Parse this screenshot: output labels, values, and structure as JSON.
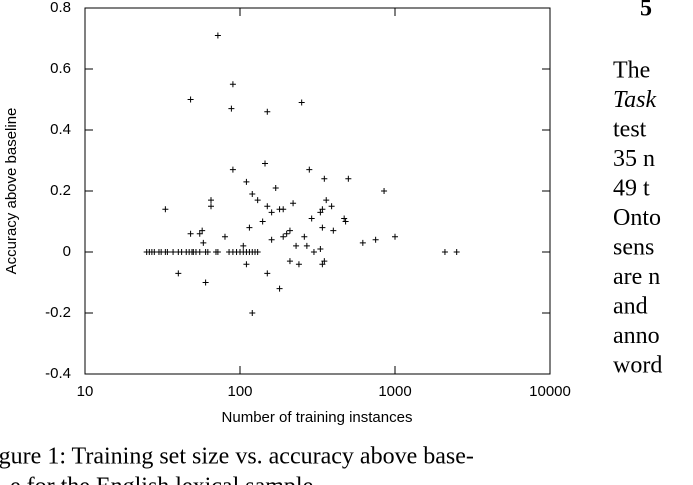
{
  "chart_data": {
    "type": "scatter",
    "xlabel": "Number of training instances",
    "ylabel": "Accuracy above baseline",
    "xscale": "log",
    "xlim": [
      10,
      10000
    ],
    "xticks": [
      10,
      100,
      1000,
      10000
    ],
    "ylim": [
      -0.4,
      0.8
    ],
    "yticks": [
      -0.4,
      -0.2,
      0,
      0.2,
      0.4,
      0.6,
      0.8
    ],
    "color": "#000000",
    "x": [
      25,
      26,
      27,
      28,
      30,
      31,
      33,
      34,
      37,
      40,
      42,
      45,
      47,
      49,
      50,
      52,
      55,
      60,
      62,
      70,
      72,
      85,
      90,
      95,
      100,
      105,
      110,
      115,
      120,
      125,
      130,
      2100,
      2500,
      72,
      48,
      90,
      88,
      150,
      250,
      145,
      90,
      280,
      170,
      65,
      65,
      33,
      110,
      120,
      130,
      190,
      180,
      150,
      160,
      220,
      330,
      340,
      360,
      390,
      470,
      480,
      500,
      350,
      850,
      1000,
      750,
      620,
      400,
      340,
      260,
      290,
      210,
      200,
      190,
      160,
      140,
      48,
      55,
      57,
      80,
      105,
      115,
      58,
      40,
      60,
      110,
      120,
      150,
      180,
      210,
      240,
      340,
      350,
      300,
      330,
      270,
      230
    ],
    "y": [
      0,
      0,
      0,
      0,
      0,
      0,
      0,
      0,
      0,
      0,
      0,
      0,
      0,
      0,
      0,
      0,
      0,
      0,
      0,
      0,
      0,
      0,
      0,
      0,
      0,
      0,
      0,
      0,
      0,
      0,
      0,
      0,
      0,
      0.71,
      0.5,
      0.55,
      0.47,
      0.46,
      0.49,
      0.29,
      0.27,
      0.27,
      0.21,
      0.17,
      0.15,
      0.14,
      0.23,
      0.19,
      0.17,
      0.14,
      0.14,
      0.15,
      0.13,
      0.16,
      0.13,
      0.14,
      0.17,
      0.15,
      0.11,
      0.1,
      0.24,
      0.24,
      0.2,
      0.05,
      0.04,
      0.03,
      0.07,
      0.08,
      0.05,
      0.11,
      0.07,
      0.06,
      0.05,
      0.04,
      0.1,
      0.06,
      0.06,
      0.07,
      0.05,
      0.02,
      0.08,
      0.03,
      -0.07,
      -0.1,
      -0.04,
      -0.2,
      -0.07,
      -0.12,
      -0.03,
      -0.04,
      -0.04,
      -0.03,
      0,
      0.01,
      0.02,
      0.02
    ]
  },
  "document": {
    "caption": [
      "igure 1: Training set size vs. accuracy above base-",
      "e for the English lexical sample"
    ],
    "heading": "5",
    "lines": [
      "The",
      "Task",
      "test",
      "35 n",
      "49 t",
      "Onto",
      "sens",
      "are n",
      "and",
      "anno",
      "word"
    ]
  }
}
